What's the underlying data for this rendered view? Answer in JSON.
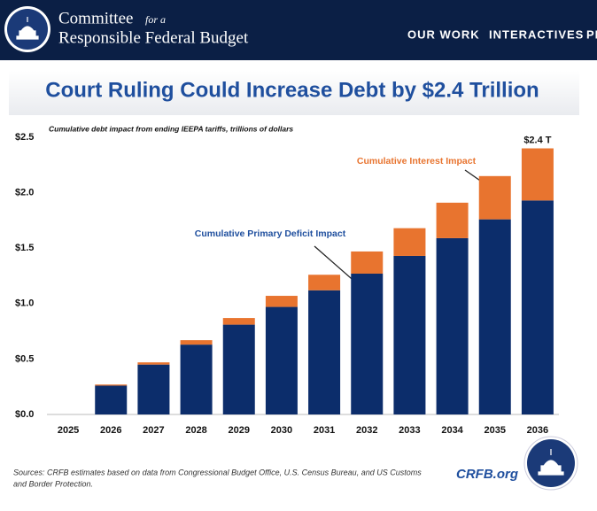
{
  "header": {
    "logo_line1": "Committee",
    "logo_italic": "for a",
    "logo_line2": "Responsible Federal Budget",
    "nav": [
      "OUR WORK",
      "INTERACTIVES",
      "PR"
    ]
  },
  "chart_data": {
    "type": "stacked_bar",
    "title": "Court Ruling Could Increase Debt by $2.4 Trillion",
    "subtitle": "Cumulative debt impact from ending IEEPA tariffs, trillions of dollars",
    "categories": [
      "2025",
      "2026",
      "2027",
      "2028",
      "2029",
      "2030",
      "2031",
      "2032",
      "2033",
      "2034",
      "2035",
      "2036"
    ],
    "series": [
      {
        "name": "Cumulative Primary Deficit Impact",
        "color": "#0c2d6b",
        "values": [
          0,
          0.26,
          0.45,
          0.63,
          0.81,
          0.97,
          1.12,
          1.27,
          1.43,
          1.59,
          1.76,
          1.93
        ]
      },
      {
        "name": "Cumulative Interest Impact",
        "color": "#e8742f",
        "values": [
          0,
          0.01,
          0.02,
          0.04,
          0.06,
          0.1,
          0.14,
          0.2,
          0.25,
          0.32,
          0.39,
          0.47
        ]
      }
    ],
    "total_label": "$2.4 T",
    "ylim": [
      0,
      2.5
    ],
    "yticks": [
      {
        "value": 0,
        "label": "$0.0"
      },
      {
        "value": 0.5,
        "label": "$0.5"
      },
      {
        "value": 1,
        "label": "$1.0"
      },
      {
        "value": 1.5,
        "label": "$1.5"
      },
      {
        "value": 2,
        "label": "$2.0"
      },
      {
        "value": 2.5,
        "label": "$2.5"
      }
    ],
    "grid": false
  },
  "footer": {
    "sources": [
      "Sources: CRFB estimates based on data from Congressional Budget Office, U.S. Census Bureau, and US Customs",
      "and Border Protection."
    ],
    "brand": "CRFB.org"
  }
}
